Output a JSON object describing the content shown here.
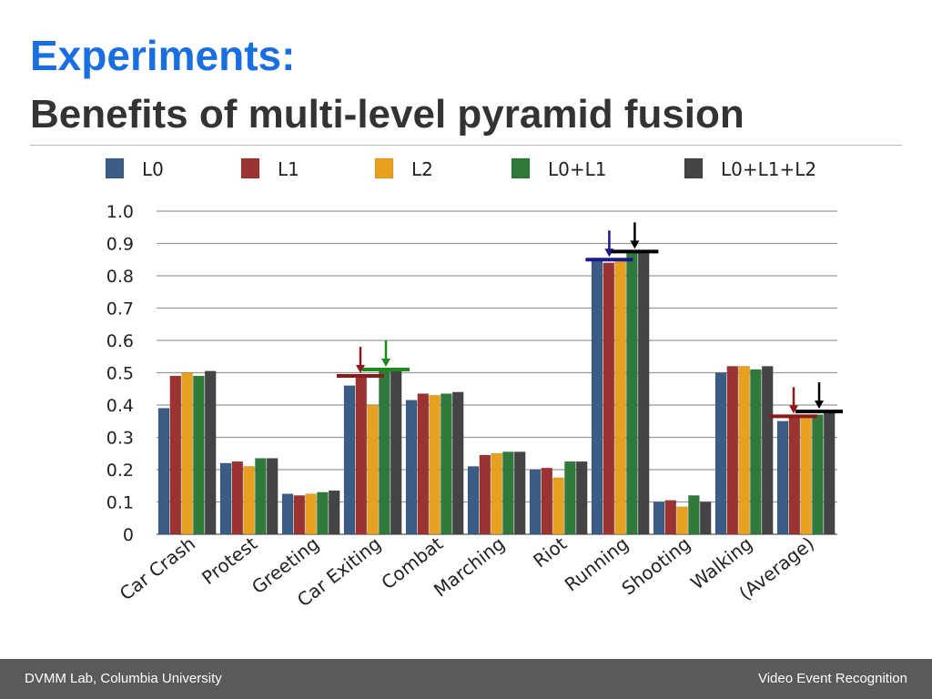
{
  "header": {
    "title": "Experiments:",
    "subtitle": "Benefits of multi-level pyramid fusion"
  },
  "footer": {
    "left": "DVMM Lab, Columbia University",
    "right": "Video Event Recognition"
  },
  "chart_data": {
    "type": "bar",
    "title": "",
    "xlabel": "",
    "ylabel": "",
    "ylim": [
      0,
      1.0
    ],
    "yticks": [
      "0",
      "0.1",
      "0.2",
      "0.3",
      "0.4",
      "0.5",
      "0.6",
      "0.7",
      "0.8",
      "0.9",
      "1.0"
    ],
    "grid": true,
    "legend_position": "top",
    "categories": [
      "Car Crash",
      "Protest",
      "Greeting",
      "Car Exiting",
      "Combat",
      "Marching",
      "Riot",
      "Running",
      "Shooting",
      "Walking",
      "(Average)"
    ],
    "series": [
      {
        "name": "L0",
        "color": "#3b5d85",
        "values": [
          0.39,
          0.22,
          0.125,
          0.46,
          0.415,
          0.21,
          0.2,
          0.85,
          0.1,
          0.5,
          0.35
        ]
      },
      {
        "name": "L1",
        "color": "#9c3333",
        "values": [
          0.49,
          0.225,
          0.12,
          0.49,
          0.435,
          0.245,
          0.205,
          0.84,
          0.105,
          0.52,
          0.365
        ]
      },
      {
        "name": "L2",
        "color": "#e8a020",
        "values": [
          0.5,
          0.21,
          0.125,
          0.4,
          0.43,
          0.25,
          0.175,
          0.85,
          0.085,
          0.52,
          0.36
        ]
      },
      {
        "name": "L0+L1",
        "color": "#2f7a3a",
        "values": [
          0.49,
          0.235,
          0.13,
          0.51,
          0.435,
          0.255,
          0.225,
          0.87,
          0.12,
          0.51,
          0.37
        ]
      },
      {
        "name": "L0+L1+L2",
        "color": "#444444",
        "values": [
          0.505,
          0.235,
          0.135,
          0.51,
          0.44,
          0.255,
          0.225,
          0.87,
          0.1,
          0.52,
          0.38
        ]
      }
    ],
    "annotations": [
      {
        "category": "Car Exiting",
        "value": 0.49,
        "color": "#8b1a1a",
        "offset": -0.5
      },
      {
        "category": "Car Exiting",
        "value": 0.51,
        "color": "#1e8a1e",
        "offset": 0.5
      },
      {
        "category": "Running",
        "value": 0.85,
        "color": "#1a1a8b",
        "offset": -0.45
      },
      {
        "category": "Running",
        "value": 0.875,
        "color": "#000000",
        "offset": 0.55
      },
      {
        "category": "(Average)",
        "value": 0.365,
        "color": "#8b1a1a",
        "offset": -0.5
      },
      {
        "category": "(Average)",
        "value": 0.38,
        "color": "#000000",
        "offset": 0.5
      }
    ]
  }
}
